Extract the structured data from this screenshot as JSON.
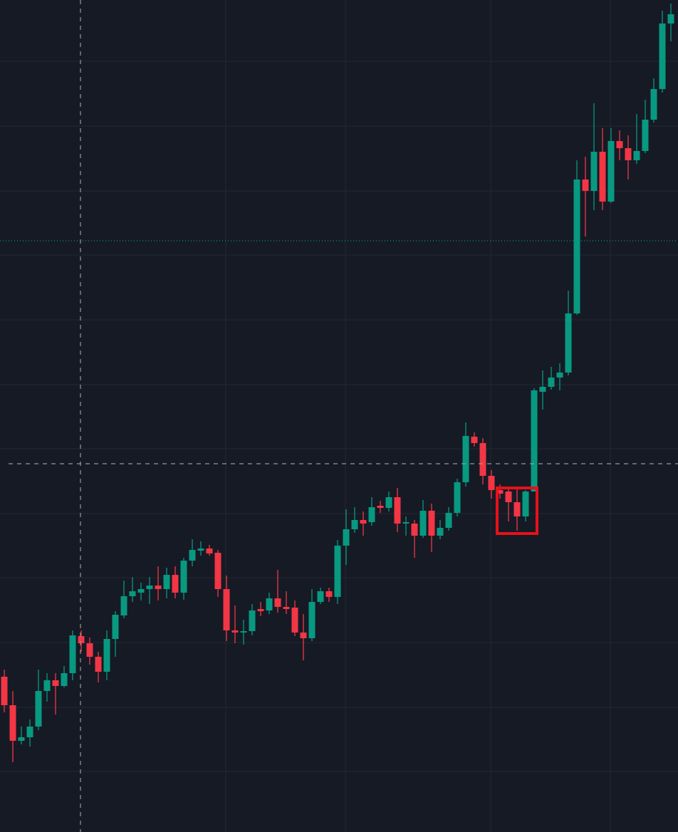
{
  "chart_data": {
    "type": "candlestick",
    "categories": [
      null,
      null,
      null,
      null,
      null,
      null,
      null,
      null,
      null,
      null,
      null,
      null,
      null,
      null,
      null,
      null,
      null,
      null,
      null,
      null,
      null,
      null,
      null,
      null,
      null,
      null,
      null,
      null,
      null,
      null,
      null,
      null,
      null,
      null,
      null,
      null,
      null,
      null,
      null,
      null,
      null,
      null,
      null,
      null,
      null,
      null,
      null,
      null,
      null,
      null,
      null,
      null,
      null,
      null,
      null,
      null,
      null,
      null,
      null,
      null,
      null,
      null,
      null,
      null,
      null,
      null,
      null,
      null,
      null,
      null,
      null,
      null,
      null,
      null,
      null,
      null,
      null,
      null,
      null
    ],
    "open": [
      218,
      178,
      128,
      133,
      148,
      198,
      213,
      205,
      223,
      275,
      265,
      246,
      225,
      271,
      304,
      331,
      336,
      341,
      346,
      341,
      361,
      336,
      381,
      395,
      398,
      392,
      341,
      283,
      280,
      282,
      313,
      311,
      328,
      316,
      315,
      280,
      272,
      323,
      338,
      330,
      402,
      425,
      438,
      435,
      458,
      455,
      470,
      433,
      433,
      416,
      451,
      416,
      427,
      448,
      491,
      555,
      546,
      500,
      480,
      478,
      463,
      443,
      478,
      618,
      625,
      638,
      645,
      728,
      916,
      900,
      955,
      885,
      970,
      960,
      943,
      956,
      1000,
      1043,
      1135
    ],
    "high": [
      228,
      198,
      148,
      158,
      228,
      223,
      223,
      233,
      283,
      283,
      273,
      253,
      283,
      310,
      353,
      358,
      350,
      358,
      373,
      371,
      373,
      385,
      411,
      408,
      403,
      396,
      360,
      318,
      298,
      320,
      323,
      336,
      368,
      338,
      325,
      306,
      341,
      343,
      343,
      410,
      453,
      456,
      450,
      470,
      465,
      478,
      483,
      443,
      438,
      466,
      461,
      438,
      456,
      496,
      575,
      561,
      553,
      508,
      488,
      483,
      482,
      480,
      623,
      648,
      653,
      658,
      760,
      943,
      948,
      1023,
      988,
      988,
      985,
      978,
      1008,
      1028,
      1058,
      1153,
      1163
    ],
    "low": [
      168,
      98,
      123,
      120,
      143,
      183,
      165,
      203,
      213,
      253,
      235,
      210,
      213,
      246,
      300,
      323,
      325,
      320,
      325,
      328,
      328,
      326,
      373,
      388,
      388,
      330,
      268,
      265,
      263,
      276,
      303,
      306,
      308,
      306,
      275,
      241,
      268,
      320,
      323,
      320,
      375,
      420,
      416,
      430,
      448,
      450,
      421,
      416,
      385,
      413,
      393,
      411,
      423,
      443,
      485,
      541,
      488,
      468,
      468,
      436,
      423,
      436,
      478,
      593,
      621,
      620,
      641,
      726,
      836,
      873,
      873,
      883,
      943,
      916,
      938,
      953,
      996,
      1038,
      1110
    ],
    "close": [
      178,
      128,
      133,
      148,
      198,
      213,
      205,
      223,
      276,
      265,
      246,
      225,
      271,
      305,
      331,
      338,
      341,
      346,
      341,
      361,
      336,
      381,
      396,
      398,
      391,
      341,
      283,
      280,
      282,
      311,
      310,
      328,
      316,
      313,
      280,
      272,
      323,
      338,
      330,
      402,
      425,
      438,
      433,
      456,
      455,
      470,
      433,
      435,
      416,
      451,
      416,
      427,
      448,
      491,
      556,
      546,
      500,
      480,
      475,
      463,
      443,
      478,
      620,
      625,
      638,
      645,
      728,
      916,
      900,
      955,
      885,
      970,
      960,
      943,
      956,
      1000,
      1043,
      1135,
      1148
    ],
    "up_color": "#089981",
    "down_color": "#f23645",
    "ylim": [
      0,
      1168
    ],
    "yticks": [
      85,
      175,
      266,
      357,
      447,
      538,
      628,
      719,
      810,
      900,
      991,
      1082
    ],
    "grid": true
  }
}
